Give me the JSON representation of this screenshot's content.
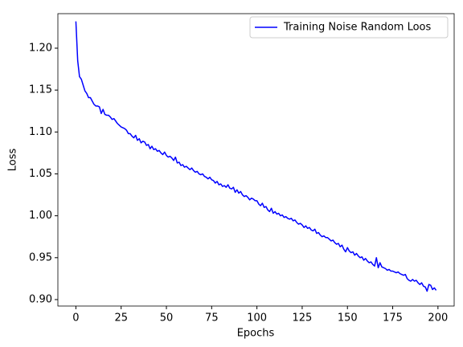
{
  "chart_data": {
    "type": "line",
    "xlabel": "Epochs",
    "ylabel": "Loss",
    "x": [
      0,
      1,
      2,
      3,
      4,
      5,
      6,
      7,
      8,
      9,
      10,
      11,
      12,
      13,
      14,
      15,
      16,
      17,
      18,
      19,
      20,
      21,
      22,
      23,
      24,
      25,
      26,
      27,
      28,
      29,
      30,
      31,
      32,
      33,
      34,
      35,
      36,
      37,
      38,
      39,
      40,
      41,
      42,
      43,
      44,
      45,
      46,
      47,
      48,
      49,
      50,
      51,
      52,
      53,
      54,
      55,
      56,
      57,
      58,
      59,
      60,
      61,
      62,
      63,
      64,
      65,
      66,
      67,
      68,
      69,
      70,
      71,
      72,
      73,
      74,
      75,
      76,
      77,
      78,
      79,
      80,
      81,
      82,
      83,
      84,
      85,
      86,
      87,
      88,
      89,
      90,
      91,
      92,
      93,
      94,
      95,
      96,
      97,
      98,
      99,
      100,
      101,
      102,
      103,
      104,
      105,
      106,
      107,
      108,
      109,
      110,
      111,
      112,
      113,
      114,
      115,
      116,
      117,
      118,
      119,
      120,
      121,
      122,
      123,
      124,
      125,
      126,
      127,
      128,
      129,
      130,
      131,
      132,
      133,
      134,
      135,
      136,
      137,
      138,
      139,
      140,
      141,
      142,
      143,
      144,
      145,
      146,
      147,
      148,
      149,
      150,
      151,
      152,
      153,
      154,
      155,
      156,
      157,
      158,
      159,
      160,
      161,
      162,
      163,
      164,
      165,
      166,
      167,
      168,
      169,
      170,
      171,
      172,
      173,
      174,
      175,
      176,
      177,
      178,
      179,
      180,
      181,
      182,
      183,
      184,
      185,
      186,
      187,
      188,
      189,
      190,
      191,
      192,
      193,
      194,
      195,
      196,
      197,
      198,
      199
    ],
    "series": [
      {
        "name": "Training Noise Random Loos",
        "color": "#0000ff",
        "values": [
          1.232,
          1.185,
          1.166,
          1.163,
          1.156,
          1.149,
          1.146,
          1.141,
          1.141,
          1.137,
          1.133,
          1.131,
          1.131,
          1.13,
          1.122,
          1.127,
          1.121,
          1.12,
          1.12,
          1.118,
          1.115,
          1.116,
          1.113,
          1.11,
          1.108,
          1.106,
          1.105,
          1.104,
          1.102,
          1.098,
          1.098,
          1.095,
          1.093,
          1.096,
          1.09,
          1.092,
          1.087,
          1.089,
          1.088,
          1.084,
          1.085,
          1.08,
          1.083,
          1.079,
          1.08,
          1.077,
          1.078,
          1.075,
          1.073,
          1.076,
          1.072,
          1.07,
          1.071,
          1.069,
          1.066,
          1.07,
          1.063,
          1.064,
          1.06,
          1.061,
          1.058,
          1.059,
          1.057,
          1.055,
          1.057,
          1.054,
          1.052,
          1.053,
          1.05,
          1.049,
          1.05,
          1.047,
          1.046,
          1.044,
          1.046,
          1.043,
          1.042,
          1.039,
          1.041,
          1.037,
          1.038,
          1.035,
          1.036,
          1.034,
          1.037,
          1.033,
          1.032,
          1.034,
          1.028,
          1.031,
          1.027,
          1.029,
          1.025,
          1.023,
          1.024,
          1.022,
          1.019,
          1.021,
          1.02,
          1.018,
          1.018,
          1.014,
          1.012,
          1.015,
          1.01,
          1.011,
          1.007,
          1.005,
          1.009,
          1.003,
          1.005,
          1.002,
          1.003,
          1.0,
          1.001,
          0.998,
          0.999,
          0.997,
          0.996,
          0.997,
          0.994,
          0.995,
          0.992,
          0.99,
          0.991,
          0.989,
          0.986,
          0.988,
          0.985,
          0.986,
          0.983,
          0.982,
          0.984,
          0.979,
          0.98,
          0.977,
          0.975,
          0.976,
          0.974,
          0.974,
          0.972,
          0.97,
          0.971,
          0.968,
          0.966,
          0.967,
          0.963,
          0.965,
          0.96,
          0.957,
          0.962,
          0.958,
          0.956,
          0.957,
          0.953,
          0.955,
          0.952,
          0.95,
          0.951,
          0.947,
          0.949,
          0.946,
          0.944,
          0.945,
          0.942,
          0.94,
          0.95,
          0.938,
          0.944,
          0.939,
          0.938,
          0.937,
          0.935,
          0.936,
          0.934,
          0.934,
          0.933,
          0.932,
          0.933,
          0.931,
          0.93,
          0.929,
          0.93,
          0.925,
          0.923,
          0.922,
          0.924,
          0.922,
          0.923,
          0.92,
          0.918,
          0.92,
          0.916,
          0.915,
          0.91,
          0.918,
          0.917,
          0.912,
          0.914,
          0.911
        ]
      }
    ],
    "xlim": [
      -9.95,
      208.95
    ],
    "xticks": [
      0,
      25,
      50,
      75,
      100,
      125,
      150,
      175,
      200
    ],
    "ylim": [
      0.8923,
      1.2412
    ],
    "yticks": [
      {
        "value": 0.9,
        "label": "0.90"
      },
      0.95,
      {
        "value": 1.0,
        "label": "1.00"
      },
      1.05,
      {
        "value": 1.1,
        "label": "1.10"
      },
      1.15,
      {
        "value": 1.2,
        "label": "1.20"
      }
    ],
    "grid": false,
    "legend": "upper right"
  }
}
